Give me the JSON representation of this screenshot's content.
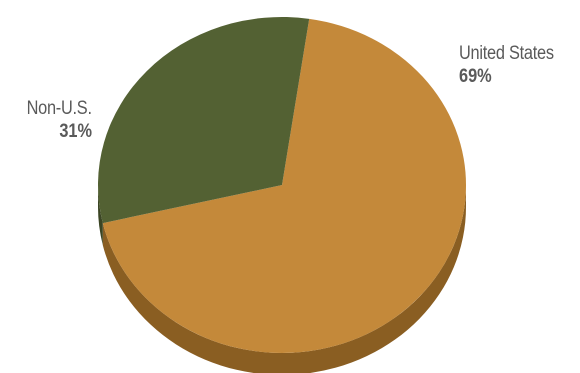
{
  "chart_data": {
    "type": "pie",
    "slices": [
      {
        "label": "United States",
        "value": 69,
        "value_label": "69%",
        "color": "#c4893a",
        "side_color": "#8a5e22"
      },
      {
        "label": "Non-U.S.",
        "value": 31,
        "value_label": "31%",
        "color": "#536133",
        "side_color": "#3b4524"
      }
    ],
    "legend": "none",
    "style": "3d-tilted"
  }
}
